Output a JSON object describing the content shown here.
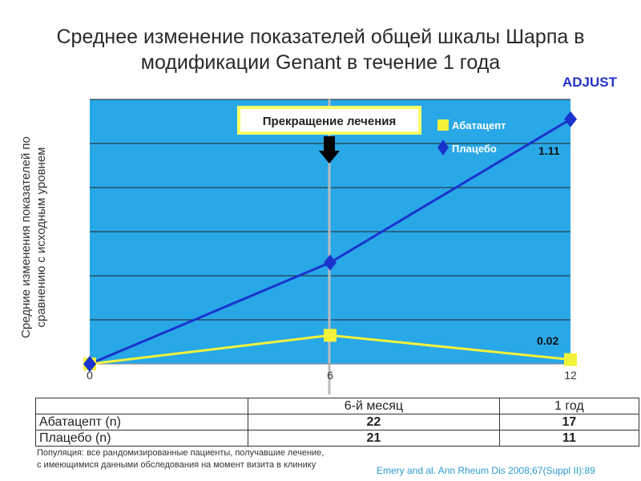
{
  "title_line1": "Среднее изменение показателей общей шкалы Шарпа в",
  "title_line2": "модификации Genant в течение 1 года",
  "badge": "ADJUST",
  "ylabel_line1": "Средние изменения показателей по",
  "ylabel_line2": "сравнению с исходным уровнем",
  "callout": "Прекращение лечения",
  "chart_data": {
    "type": "line",
    "x": [
      0,
      6,
      12
    ],
    "xticks": [
      "0",
      "6",
      "12"
    ],
    "xlim": [
      0,
      12
    ],
    "ylim": [
      0,
      1.2
    ],
    "grid": true,
    "legend_position": "top-right",
    "series": [
      {
        "name": "Абатацепт",
        "values": [
          0,
          0.13,
          0.02
        ],
        "color": "#f2f23a",
        "marker": "square"
      },
      {
        "name": "Плацебо",
        "values": [
          0,
          0.46,
          1.11
        ],
        "color": "#1a33cc",
        "marker": "diamond"
      }
    ],
    "data_labels": [
      {
        "series": "Плацебо",
        "text": "1.11"
      },
      {
        "series": "Абатацепт",
        "text": "0.02"
      }
    ],
    "colors": {
      "plot_bg": "#29a8e8",
      "grid": "#222222",
      "callout_border": "#ffff66"
    }
  },
  "table": {
    "headers": [
      "",
      "6-й месяц",
      "1 год"
    ],
    "rows": [
      [
        "Абатацепт (n)",
        "22",
        "17"
      ],
      [
        "Плацебо (n)",
        "21",
        "11"
      ]
    ]
  },
  "footnote_line1": "Популяция: все рандомизированные пациенты, получавшие лечение,",
  "footnote_line2": "с имеющимися данными обследования на момент визита в клинику",
  "citation": "Emery and al. Ann Rheum Dis 2008;67(Suppl II):89"
}
